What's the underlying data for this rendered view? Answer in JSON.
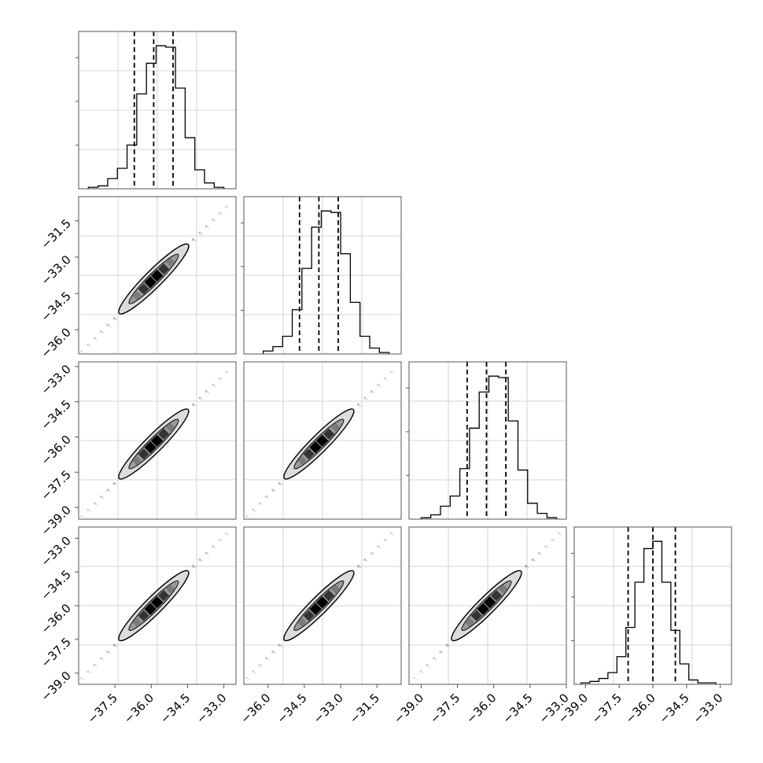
{
  "chart_data": {
    "type": "corner",
    "grid": true,
    "params": 4,
    "quantiles": [
      0.16,
      0.5,
      0.84
    ],
    "marginals": [
      {
        "param_index": 0,
        "xlim": [
          -39.0,
          -32.5
        ],
        "quantile_values": [
          -36.7,
          -35.9,
          -35.1
        ],
        "bin_edges": [
          -38.6,
          -38.2,
          -37.8,
          -37.4,
          -37.0,
          -36.6,
          -36.2,
          -35.8,
          -35.4,
          -35.0,
          -34.6,
          -34.2,
          -33.8,
          -33.4,
          -33.0
        ],
        "counts": [
          1,
          2,
          7,
          14,
          30,
          65,
          86,
          98,
          97,
          69,
          35,
          13,
          4,
          1
        ]
      },
      {
        "param_index": 1,
        "xlim": [
          -37.0,
          -30.5
        ],
        "quantile_values": [
          -34.7,
          -33.9,
          -33.1
        ],
        "bin_edges": [
          -36.2,
          -35.8,
          -35.4,
          -35.0,
          -34.6,
          -34.2,
          -33.8,
          -33.4,
          -33.0,
          -32.6,
          -32.2,
          -31.8,
          -31.4,
          -31.0
        ],
        "counts": [
          2,
          5,
          12,
          30,
          58,
          86,
          97,
          96,
          68,
          35,
          12,
          4,
          1
        ]
      },
      {
        "param_index": 2,
        "xlim": [
          -39.5,
          -33.0
        ],
        "quantile_values": [
          -37.1,
          -36.3,
          -35.5
        ],
        "bin_edges": [
          -39.0,
          -38.6,
          -38.2,
          -37.8,
          -37.4,
          -37.0,
          -36.6,
          -36.2,
          -35.8,
          -35.4,
          -35.0,
          -34.6,
          -34.2,
          -33.8,
          -33.4
        ],
        "counts": [
          1,
          3,
          9,
          16,
          35,
          63,
          88,
          99,
          98,
          68,
          34,
          11,
          4,
          1
        ]
      },
      {
        "param_index": 3,
        "xlim": [
          -39.5,
          -32.5
        ],
        "quantile_values": [
          -37.1,
          -36.0,
          -35.0
        ],
        "bin_edges": [
          -39.2,
          -38.8,
          -38.4,
          -38.0,
          -37.6,
          -37.2,
          -36.8,
          -36.4,
          -36.0,
          -35.6,
          -35.2,
          -34.8,
          -34.4,
          -34.0,
          -33.6,
          -33.2
        ],
        "counts": [
          1,
          2,
          4,
          8,
          19,
          39,
          70,
          93,
          98,
          70,
          37,
          14,
          3,
          1,
          1
        ]
      }
    ],
    "pairs": [
      {
        "x_param": 0,
        "y_param": 1,
        "xlim": [
          -39.0,
          -32.5
        ],
        "ylim": [
          -37.0,
          -30.5
        ],
        "center": [
          -35.9,
          -33.9
        ]
      },
      {
        "x_param": 0,
        "y_param": 2,
        "xlim": [
          -39.0,
          -32.5
        ],
        "ylim": [
          -39.5,
          -32.8
        ],
        "center": [
          -35.9,
          -36.3
        ]
      },
      {
        "x_param": 1,
        "y_param": 2,
        "xlim": [
          -37.0,
          -30.5
        ],
        "ylim": [
          -39.5,
          -32.8
        ],
        "center": [
          -33.9,
          -36.3
        ]
      },
      {
        "x_param": 0,
        "y_param": 3,
        "xlim": [
          -39.0,
          -32.5
        ],
        "ylim": [
          -39.5,
          -32.5
        ],
        "center": [
          -35.9,
          -36.0
        ]
      },
      {
        "x_param": 1,
        "y_param": 3,
        "xlim": [
          -37.0,
          -30.5
        ],
        "ylim": [
          -39.5,
          -32.5
        ],
        "center": [
          -33.9,
          -36.0
        ]
      },
      {
        "x_param": 2,
        "y_param": 3,
        "xlim": [
          -39.5,
          -33.0
        ],
        "ylim": [
          -39.5,
          -32.5
        ],
        "center": [
          -36.3,
          -36.0
        ]
      }
    ],
    "bottom_x_ticks": [
      {
        "column": 0,
        "labels": [
          "−37.5",
          "−36.0",
          "−34.5",
          "−33.0"
        ],
        "values": [
          -37.5,
          -36.0,
          -34.5,
          -33.0
        ]
      },
      {
        "column": 1,
        "labels": [
          "−36.0",
          "−34.5",
          "−33.0",
          "−31.5"
        ],
        "values": [
          -36.0,
          -34.5,
          -33.0,
          -31.5
        ]
      },
      {
        "column": 2,
        "labels": [
          "−39.0",
          "−37.5",
          "−36.0",
          "−34.5",
          "−33.0"
        ],
        "values": [
          -39.0,
          -37.5,
          -36.0,
          -34.5,
          -33.0
        ]
      },
      {
        "column": 3,
        "labels": [
          "−39.0",
          "−37.5",
          "−36.0",
          "−34.5",
          "−33.0"
        ],
        "values": [
          -39.0,
          -37.5,
          -36.0,
          -34.5,
          -33.0
        ]
      }
    ],
    "left_y_ticks": [
      {
        "row": 1,
        "labels": [
          "−31.5",
          "−33.0",
          "−34.5",
          "−36.0"
        ],
        "values": [
          -31.5,
          -33.0,
          -34.5,
          -36.0
        ]
      },
      {
        "row": 2,
        "labels": [
          "−33.0",
          "−34.5",
          "−36.0",
          "−37.5",
          "−39.0"
        ],
        "values": [
          -33.0,
          -34.5,
          -36.0,
          -37.5,
          -39.0
        ]
      },
      {
        "row": 3,
        "labels": [
          "−33.0",
          "−34.5",
          "−36.0",
          "−37.5",
          "−39.0"
        ],
        "values": [
          -33.0,
          -34.5,
          -36.0,
          -37.5,
          -39.0
        ]
      }
    ]
  }
}
